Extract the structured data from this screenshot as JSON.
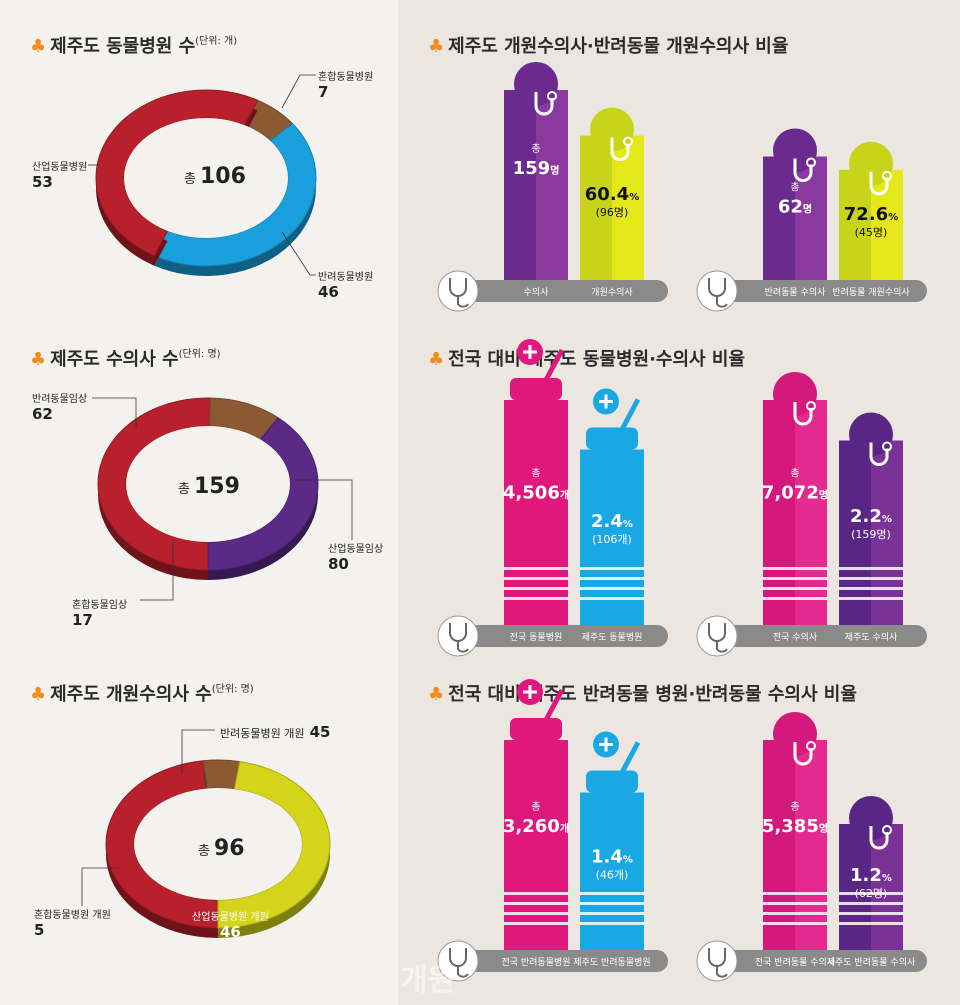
{
  "sections": {
    "hospitals": {
      "title": "제주도 동물병원 수",
      "unit": "(단위: 개)",
      "total_label": "총",
      "total": "106"
    },
    "vets": {
      "title": "제주도 수의사 수",
      "unit": "(단위: 명)",
      "total_label": "총",
      "total": "159"
    },
    "open_vets": {
      "title": "제주도 개원수의사 수",
      "unit": "(단위: 명)",
      "total_label": "총",
      "total": "96"
    },
    "ratio_open": {
      "title": "제주도 개원수의사·반려동물 개원수의사 비율"
    },
    "ratio_national": {
      "title": "전국 대비 제주도 동물병원·수의사 비율"
    },
    "ratio_companion": {
      "title": "전국 대비 제주도 반려동물 병원·반려동물 수의사 비율"
    }
  },
  "watermark": "개원",
  "chart_data": [
    {
      "type": "pie",
      "title": "제주도 동물병원 수",
      "slices": [
        {
          "label": "혼합동물병원",
          "value": 7,
          "color": "#8b5a35"
        },
        {
          "label": "반려동물병원",
          "value": 46,
          "color": "#19a0dc"
        },
        {
          "label": "산업동물병원",
          "value": 53,
          "color": "#b8202c"
        }
      ],
      "slice_values_text": [
        "7",
        "46",
        "53"
      ]
    },
    {
      "type": "pie",
      "title": "제주도 수의사 수",
      "slices": [
        {
          "label": "산업동물임상",
          "value": 80,
          "color": "#b8202c"
        },
        {
          "label": "혼합동물임상",
          "value": 17,
          "color": "#8b5a35"
        },
        {
          "label": "반려동물임상",
          "value": 62,
          "color": "#5a2a86"
        }
      ],
      "slice_values_text": [
        "80",
        "17",
        "62"
      ]
    },
    {
      "type": "pie",
      "title": "제주도 개원수의사 수",
      "slices": [
        {
          "label": "산업동물병원 개원",
          "value": 46,
          "color": "#b8202c"
        },
        {
          "label": "혼합동물병원 개원",
          "value": 5,
          "color": "#8b5a35"
        },
        {
          "label": "반려동물병원 개원",
          "value": 45,
          "color": "#d4d41a"
        }
      ],
      "slice_values_text": [
        "46",
        "5",
        "45"
      ]
    },
    {
      "type": "bar",
      "title": "제주도 개원수의사·반려동물 개원수의사 비율",
      "groups": [
        {
          "bars": [
            {
              "category": "수의사",
              "value": 159,
              "label_top": "총",
              "label_main": "159",
              "label_unit": "명",
              "color": "#6a2a8e",
              "color2": "#8a3a9e"
            },
            {
              "category": "개원수의사",
              "value": 96,
              "label_main": "60.4",
              "label_unit": "%",
              "label_sub": "(96명)",
              "color": "#c8d41a",
              "color2": "#e4e81a"
            }
          ]
        },
        {
          "bars": [
            {
              "category": "반려동물 수의사",
              "value": 62,
              "label_top": "총",
              "label_main": "62",
              "label_unit": "명",
              "color": "#6a2a8e",
              "color2": "#8a3a9e"
            },
            {
              "category": "반려동물 개원수의사",
              "value": 45,
              "label_main": "72.6",
              "label_unit": "%",
              "label_sub": "(45명)",
              "color": "#c8d41a",
              "color2": "#e4e81a"
            }
          ]
        }
      ]
    },
    {
      "type": "bar",
      "title": "전국 대비 제주도 동물병원·수의사 비율",
      "groups": [
        {
          "bars": [
            {
              "category": "전국 동물병원",
              "value": 4506,
              "label_top": "총",
              "label_main": "4,506",
              "label_unit": "개",
              "color": "#e0187e",
              "color2": "#e0187e"
            },
            {
              "category": "제주도 동물병원",
              "value": 106,
              "label_main": "2.4",
              "label_unit": "%",
              "label_sub": "(106개)",
              "color": "#1aa8e4",
              "color2": "#1aa8e4"
            }
          ]
        },
        {
          "bars": [
            {
              "category": "전국 수의사",
              "value": 7072,
              "label_top": "총",
              "label_main": "7,072",
              "label_unit": "명",
              "color": "#d4187c",
              "color2": "#e42a8e"
            },
            {
              "category": "제주도 수의사",
              "value": 159,
              "label_main": "2.2",
              "label_unit": "%",
              "label_sub": "(159명)",
              "color": "#5a2686",
              "color2": "#7a3296"
            }
          ]
        }
      ]
    },
    {
      "type": "bar",
      "title": "전국 대비 제주도 반려동물 병원·반려동물 수의사 비율",
      "groups": [
        {
          "bars": [
            {
              "category": "전국 반려동물병원",
              "value": 3260,
              "label_top": "총",
              "label_main": "3,260",
              "label_unit": "개",
              "color": "#e0187e",
              "color2": "#e0187e"
            },
            {
              "category": "제주도 반려동물병원",
              "value": 46,
              "label_main": "1.4",
              "label_unit": "%",
              "label_sub": "(46개)",
              "color": "#1aa8e4",
              "color2": "#1aa8e4"
            }
          ]
        },
        {
          "bars": [
            {
              "category": "전국 반려동물 수의사",
              "value": 5385,
              "label_top": "총",
              "label_main": "5,385",
              "label_unit": "명",
              "color": "#d4187c",
              "color2": "#e42a8e"
            },
            {
              "category": "제주도 반려동물 수의사",
              "value": 62,
              "label_main": "1.2",
              "label_unit": "%",
              "label_sub": "(62명)",
              "color": "#5a2686",
              "color2": "#7a3296"
            }
          ]
        }
      ]
    }
  ]
}
